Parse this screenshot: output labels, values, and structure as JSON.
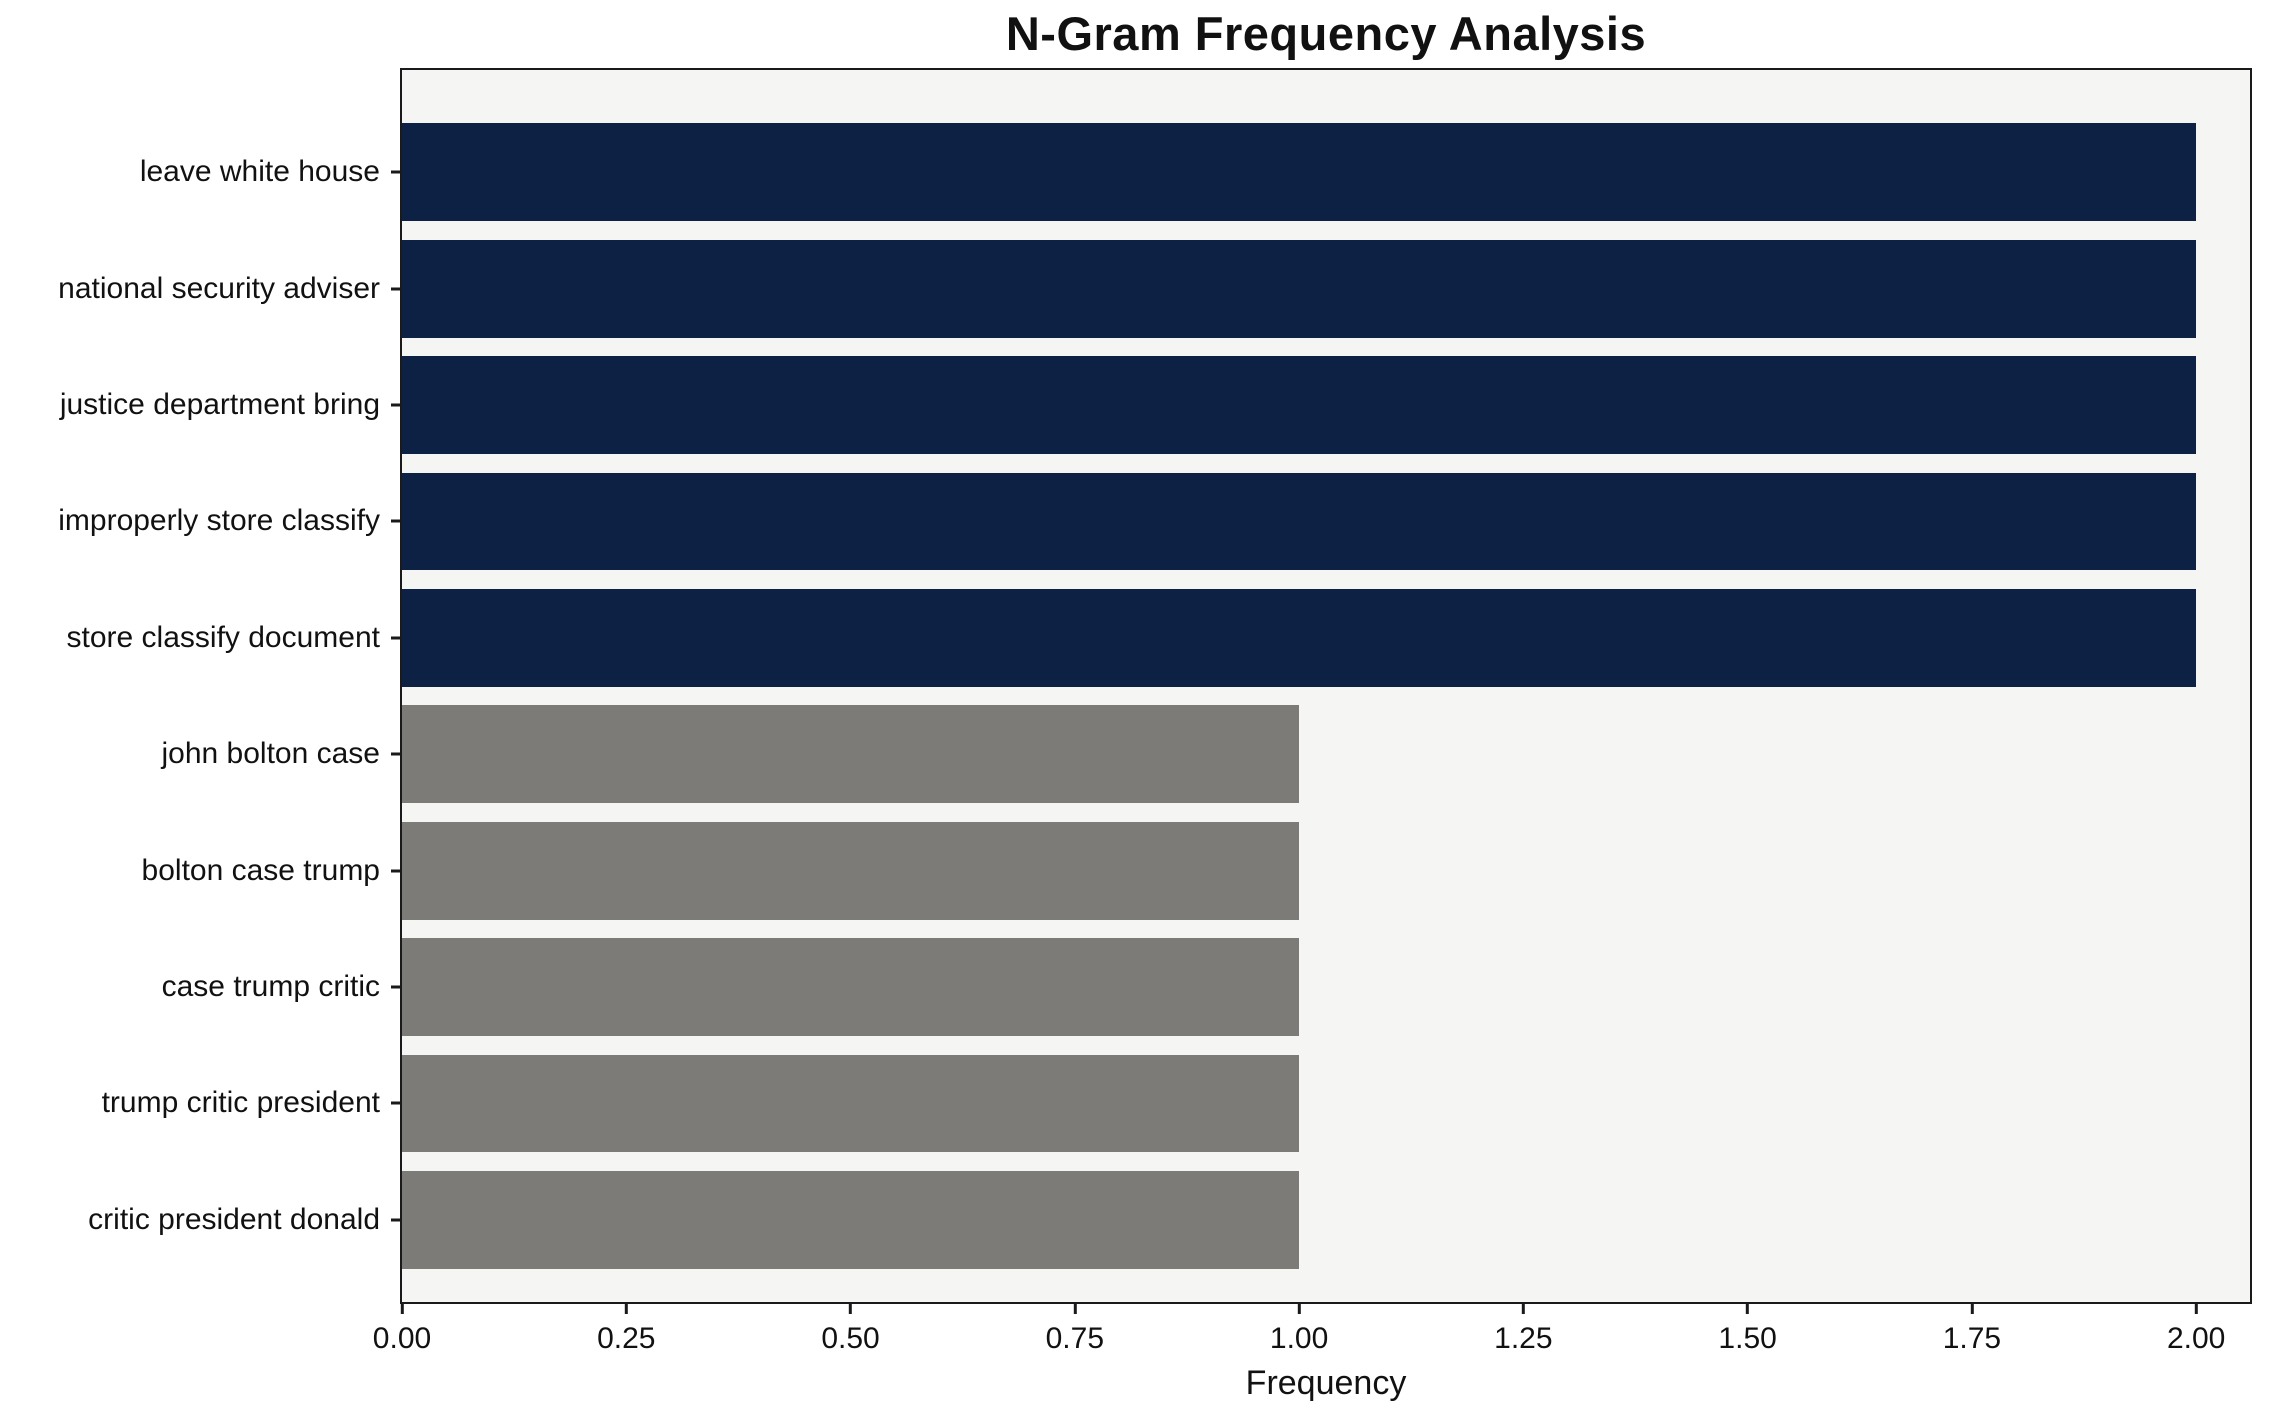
{
  "chart_data": {
    "type": "bar",
    "orientation": "horizontal",
    "title": "N-Gram Frequency Analysis",
    "xlabel": "Frequency",
    "ylabel": "",
    "categories": [
      "leave white house",
      "national security adviser",
      "justice department bring",
      "improperly store classify",
      "store classify document",
      "john bolton case",
      "bolton case trump",
      "case trump critic",
      "trump critic president",
      "critic president donald"
    ],
    "values": [
      2,
      2,
      2,
      2,
      2,
      1,
      1,
      1,
      1,
      1
    ],
    "bar_colors": [
      "#0d2145",
      "#0d2145",
      "#0d2145",
      "#0d2145",
      "#0d2145",
      "#7d7b77",
      "#7d7b77",
      "#7d7b77",
      "#7d7b77",
      "#7d7b77"
    ],
    "xlim": [
      0,
      2.06
    ],
    "xticks": [
      0,
      0.25,
      0.5,
      0.75,
      1.0,
      1.25,
      1.5,
      1.75,
      2.0
    ],
    "xtick_labels": [
      "0.00",
      "0.25",
      "0.50",
      "0.75",
      "1.00",
      "1.25",
      "1.50",
      "1.75",
      "2.00"
    ],
    "legend": null,
    "grid": false,
    "plot_background": "#f5f5f4",
    "highlight_color": "#0d2145",
    "normal_color": "#7d7b77"
  }
}
